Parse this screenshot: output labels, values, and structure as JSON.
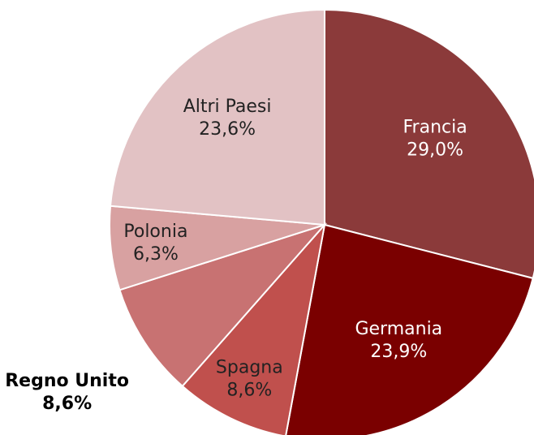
{
  "chart_data": {
    "type": "pie",
    "categories": [
      "Francia",
      "Germania",
      "Spagna",
      "Regno Unito",
      "Polonia",
      "Altri Paesi"
    ],
    "values": [
      29.0,
      23.9,
      8.6,
      8.6,
      6.3,
      23.6
    ],
    "value_labels": [
      "29,0%",
      "23,9%",
      "8,6%",
      "8,6%",
      "6,3%",
      "23,6%"
    ],
    "colors": [
      "#8b3a3a",
      "#7a0000",
      "#c0504d",
      "#c87272",
      "#d8a1a1",
      "#e2c2c4"
    ]
  }
}
